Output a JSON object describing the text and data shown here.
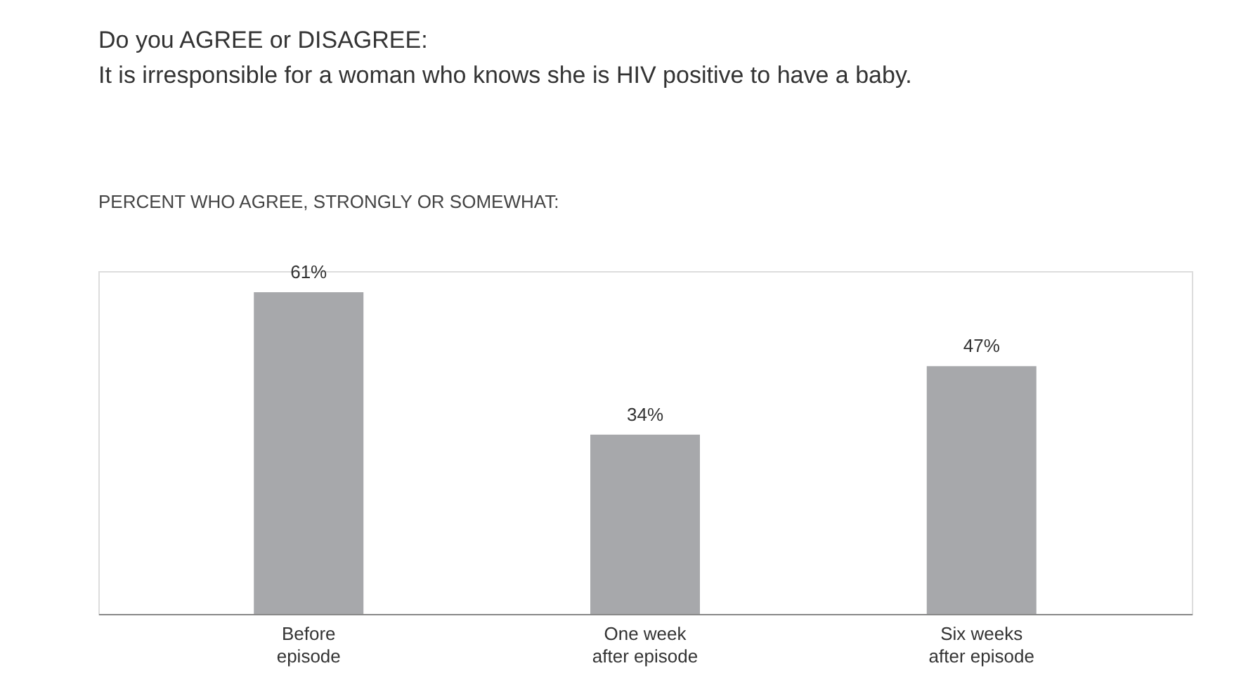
{
  "chart_data": {
    "type": "bar",
    "title": "Do you AGREE or DISAGREE:",
    "subtitle": "It is irresponsible for a woman who knows she is HIV positive to have a baby.",
    "annotations": [
      "PERCENT WHO AGREE, STRONGLY OR SOMEWHAT:"
    ],
    "categories": [
      "Before\nepisode",
      "One week\nafter episode",
      "Six weeks\nafter episode"
    ],
    "values": [
      61,
      34,
      47
    ],
    "value_labels": [
      "61%",
      "34%",
      "47%"
    ],
    "color": "#a7a8ab",
    "grid": false
  }
}
